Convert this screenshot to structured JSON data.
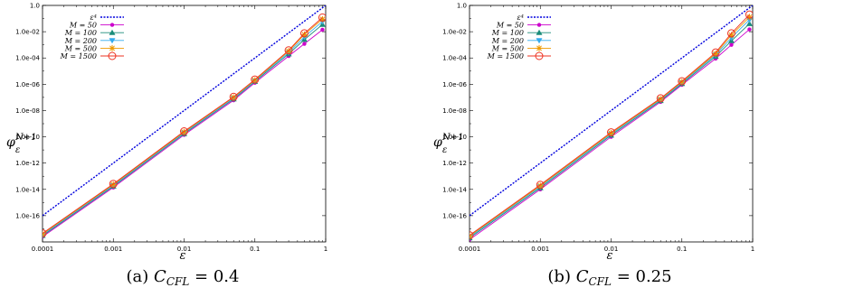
{
  "chart_data": [
    {
      "type": "line",
      "caption": {
        "prefix": "(a)",
        "var_main": "C",
        "var_sub": "CFL",
        "value": "= 0.4"
      },
      "xlabel": "ε",
      "ylabel": {
        "base": "φ",
        "sup": "N+1",
        "sub": "ε"
      },
      "xscale": "log",
      "yscale": "log",
      "xlim": [
        0.0001,
        1
      ],
      "ylim": [
        1e-18,
        1
      ],
      "x_ticks": [
        0.0001,
        0.001,
        0.01,
        0.1,
        1
      ],
      "x_tick_labels": [
        "0.0001",
        "0.001",
        "0.01",
        "0.1",
        "1"
      ],
      "y_ticks": [
        1e-16,
        1e-14,
        1e-12,
        1e-10,
        1e-08,
        1e-06,
        0.0001,
        0.01,
        1
      ],
      "y_tick_labels": [
        "1.0e-16",
        "1.0e-14",
        "1.0e-12",
        "1.0e-10",
        "1.0e-08",
        "1.0e-06",
        "1.0e-04",
        "1.0e-02",
        "1.0"
      ],
      "legend_position": "top-left",
      "reference": {
        "name": "ε⁴",
        "color": "#0000dd",
        "x": [
          0.0001,
          1
        ],
        "y": [
          1e-16,
          1
        ]
      },
      "x": [
        0.0001,
        0.001,
        0.01,
        0.05,
        0.1,
        0.3,
        0.5,
        0.9
      ],
      "series": [
        {
          "name": "M = 50",
          "color": "#cc00cc",
          "marker": "dot",
          "values": [
            2.5e-18,
            1.4e-14,
            1.4e-10,
            6e-08,
            1.3e-06,
            0.00014,
            0.0012,
            0.014
          ]
        },
        {
          "name": "M = 100",
          "color": "#1a8c7a",
          "marker": "triangle",
          "values": [
            3e-18,
            1.7e-14,
            1.7e-10,
            7.5e-08,
            1.6e-06,
            0.0002,
            0.0025,
            0.035
          ]
        },
        {
          "name": "M = 200",
          "color": "#33aaee",
          "marker": "tri-down",
          "values": [
            3.5e-18,
            2e-14,
            2e-10,
            8.5e-08,
            1.8e-06,
            0.00026,
            0.004,
            0.06
          ]
        },
        {
          "name": "M = 500",
          "color": "#ee9900",
          "marker": "star",
          "values": [
            4e-18,
            2.3e-14,
            2.3e-10,
            1e-07,
            2e-06,
            0.00033,
            0.006,
            0.09
          ]
        },
        {
          "name": "M = 1500",
          "color": "#ee3322",
          "marker": "circle",
          "values": [
            4.5e-18,
            2.6e-14,
            2.6e-10,
            1.1e-07,
            2.3e-06,
            0.00038,
            0.0075,
            0.12
          ]
        }
      ]
    },
    {
      "type": "line",
      "caption": {
        "prefix": "(b)",
        "var_main": "C",
        "var_sub": "CFL",
        "value": "= 0.25"
      },
      "xlabel": "ε",
      "ylabel": {
        "base": "φ",
        "sup": "N+1",
        "sub": "ε"
      },
      "xscale": "log",
      "yscale": "log",
      "xlim": [
        0.0001,
        1
      ],
      "ylim": [
        1e-18,
        1
      ],
      "x_ticks": [
        0.0001,
        0.001,
        0.01,
        0.1,
        1
      ],
      "x_tick_labels": [
        "0.0001",
        "0.001",
        "0.01",
        "0.1",
        "1"
      ],
      "y_ticks": [
        1e-16,
        1e-14,
        1e-12,
        1e-10,
        1e-08,
        1e-06,
        0.0001,
        0.01,
        1
      ],
      "y_tick_labels": [
        "1.0e-16",
        "1.0e-14",
        "1.0e-12",
        "1.0e-10",
        "1.0e-08",
        "1.0e-06",
        "1.0e-04",
        "1.0e-02",
        "1.0"
      ],
      "legend_position": "top-left",
      "reference": {
        "name": "ε⁴",
        "color": "#0000dd",
        "x": [
          0.0001,
          1
        ],
        "y": [
          1e-16,
          1
        ]
      },
      "x": [
        0.0001,
        0.001,
        0.01,
        0.05,
        0.1,
        0.3,
        0.5,
        0.9
      ],
      "series": [
        {
          "name": "M = 50",
          "color": "#cc00cc",
          "marker": "dot",
          "values": [
            1.5e-18,
            1e-14,
            1e-10,
            4.5e-08,
            9e-07,
            9e-05,
            0.001,
            0.015
          ]
        },
        {
          "name": "M = 100",
          "color": "#1a8c7a",
          "marker": "triangle",
          "values": [
            2e-18,
            1.3e-14,
            1.3e-10,
            5.5e-08,
            1.1e-06,
            0.00013,
            0.002,
            0.04
          ]
        },
        {
          "name": "M = 200",
          "color": "#33aaee",
          "marker": "tri-down",
          "values": [
            2.4e-18,
            1.6e-14,
            1.6e-10,
            6.5e-08,
            1.3e-06,
            0.00017,
            0.0035,
            0.08
          ]
        },
        {
          "name": "M = 500",
          "color": "#ee9900",
          "marker": "star",
          "values": [
            2.8e-18,
            1.9e-14,
            1.9e-10,
            7.5e-08,
            1.5e-06,
            0.00021,
            0.0055,
            0.13
          ]
        },
        {
          "name": "M = 1500",
          "color": "#ee3322",
          "marker": "circle",
          "values": [
            3.2e-18,
            2.2e-14,
            2.2e-10,
            8.5e-08,
            1.7e-06,
            0.00026,
            0.0075,
            0.2
          ]
        }
      ]
    }
  ]
}
